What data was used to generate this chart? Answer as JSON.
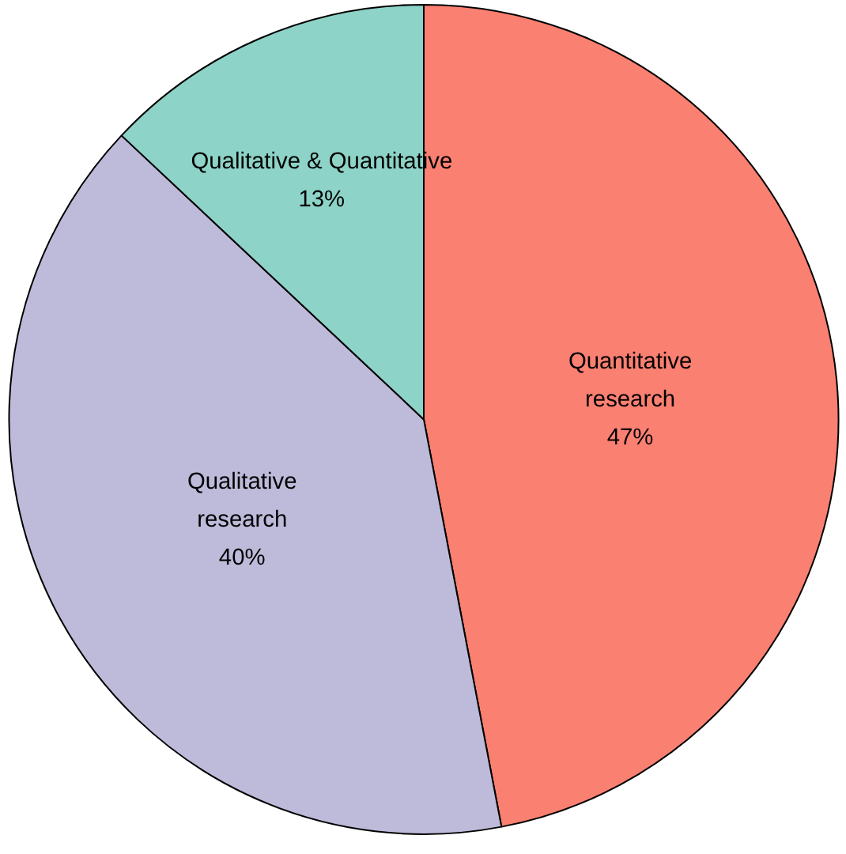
{
  "chart_data": {
    "type": "pie",
    "categories": [
      "Quantitative\nresearch",
      "Qualitative\nresearch",
      "Qualitative & Quantitative"
    ],
    "values": [
      47,
      40,
      13
    ],
    "colors": [
      "#fa8072",
      "#bebada",
      "#8dd3c7"
    ],
    "value_labels": [
      "47%",
      "40%",
      "13%"
    ]
  }
}
